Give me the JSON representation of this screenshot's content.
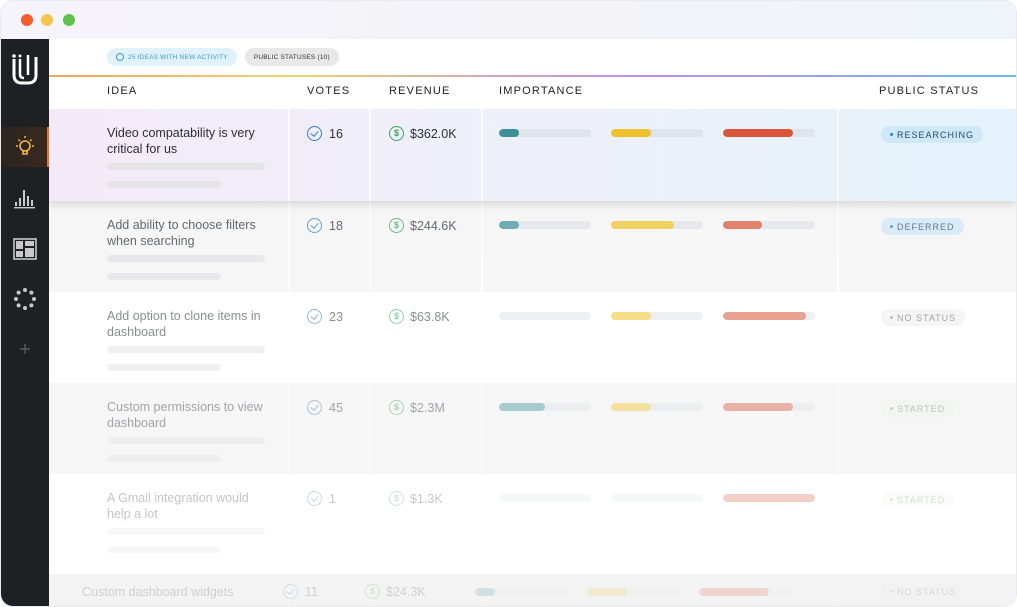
{
  "chips": {
    "activity": "25 ideas with new activity",
    "statuses": "Public statuses (10)"
  },
  "headers": {
    "idea": "IDEA",
    "votes": "VOTES",
    "revenue": "REVENUE",
    "importance": "IMPORTANCE",
    "public_status": "PUBLIC STATUS"
  },
  "colors": {
    "teal": "#3d8f99",
    "yellow": "#eec22a",
    "orange": "#d9553a",
    "accent": "#f07a2c"
  },
  "sidebar_icons": [
    "ideas-lightbulb-icon",
    "analytics-bars-icon",
    "board-layout-icon",
    "loading-dots-icon",
    "add-plus-icon"
  ],
  "rows": [
    {
      "idea": "Video compatability is very critical for us",
      "votes": "16",
      "revenue": "$362.0K",
      "importance": [
        0.22,
        0.44,
        0.76
      ],
      "status": "RESEARCHING"
    },
    {
      "idea": "Add ability to choose filters when searching",
      "votes": "18",
      "revenue": "$244.6K",
      "importance": [
        0.22,
        0.68,
        0.42
      ],
      "status": "DEFERRED"
    },
    {
      "idea": "Add option to clone items in dashboard",
      "votes": "23",
      "revenue": "$63.8K",
      "importance": [
        0.0,
        0.44,
        0.9
      ],
      "status": "NO STATUS"
    },
    {
      "idea": "Custom permissions to view dashboard",
      "votes": "45",
      "revenue": "$2.3M",
      "importance": [
        0.5,
        0.44,
        0.76
      ],
      "status": "STARTED"
    },
    {
      "idea": "A Gmail integration would help a lot",
      "votes": "1",
      "revenue": "$1.3K",
      "importance": [
        0.0,
        0.0,
        1.0
      ],
      "status": "STARTED"
    },
    {
      "idea": "Custom dashboard widgets",
      "votes": "11",
      "revenue": "$24.3K",
      "importance": [
        0.22,
        0.44,
        0.76
      ],
      "status": "NO STATUS"
    }
  ]
}
